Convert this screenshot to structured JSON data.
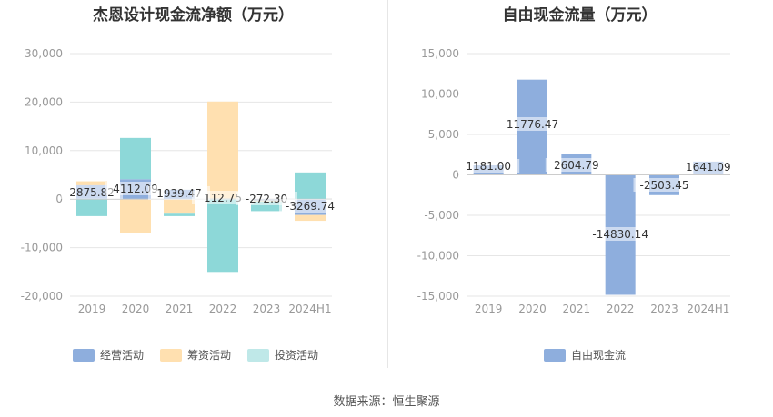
{
  "chart_data": [
    {
      "type": "bar",
      "title": "杰恩设计现金流净额（万元）",
      "categories": [
        "2019",
        "2020",
        "2021",
        "2022",
        "2023",
        "2024H1"
      ],
      "stacked": true,
      "ylim": [
        -20000,
        30000
      ],
      "yticks": [
        30000,
        20000,
        10000,
        0,
        -10000,
        -20000
      ],
      "ytick_labels": [
        "30,000",
        "20,000",
        "10,000",
        "0",
        "-10,000",
        "-20,000"
      ],
      "series": [
        {
          "name": "经营活动",
          "color": "#8eaedd",
          "values": [
            2875.82,
            4112.09,
            1939.47,
            112.75,
            -272.3,
            -3269.74
          ],
          "labels": [
            "2875.82",
            "4112.09",
            "1939.47",
            "112.75",
            "-272.30",
            "-3269.74"
          ]
        },
        {
          "name": "筹资活动",
          "color": "#ffe0b0",
          "values": [
            800,
            -7000,
            -3000,
            20000,
            -200,
            -1200
          ]
        },
        {
          "name": "投资活动",
          "color": "#8dd8d8",
          "values": [
            -3500,
            8500,
            -500,
            -15000,
            -2000,
            5500
          ]
        }
      ],
      "legend_position": "bottom",
      "grid": true
    },
    {
      "type": "bar",
      "title": "自由现金流量（万元）",
      "categories": [
        "2019",
        "2020",
        "2021",
        "2022",
        "2023",
        "2024H1"
      ],
      "ylim": [
        -15000,
        15000
      ],
      "yticks": [
        15000,
        10000,
        5000,
        0,
        -5000,
        -10000,
        -15000
      ],
      "ytick_labels": [
        "15,000",
        "10,000",
        "5,000",
        "0",
        "-5,000",
        "-10,000",
        "-15,000"
      ],
      "series": [
        {
          "name": "自由现金流",
          "color": "#8eaedd",
          "values": [
            1181.0,
            11776.47,
            2604.79,
            -14830.14,
            -2503.45,
            1641.09
          ],
          "labels": [
            "1181.00",
            "11776.47",
            "2604.79",
            "-14830.14",
            "-2503.45",
            "1641.09"
          ]
        }
      ],
      "legend_position": "bottom",
      "grid": true
    }
  ],
  "source": "数据来源：恒生聚源"
}
